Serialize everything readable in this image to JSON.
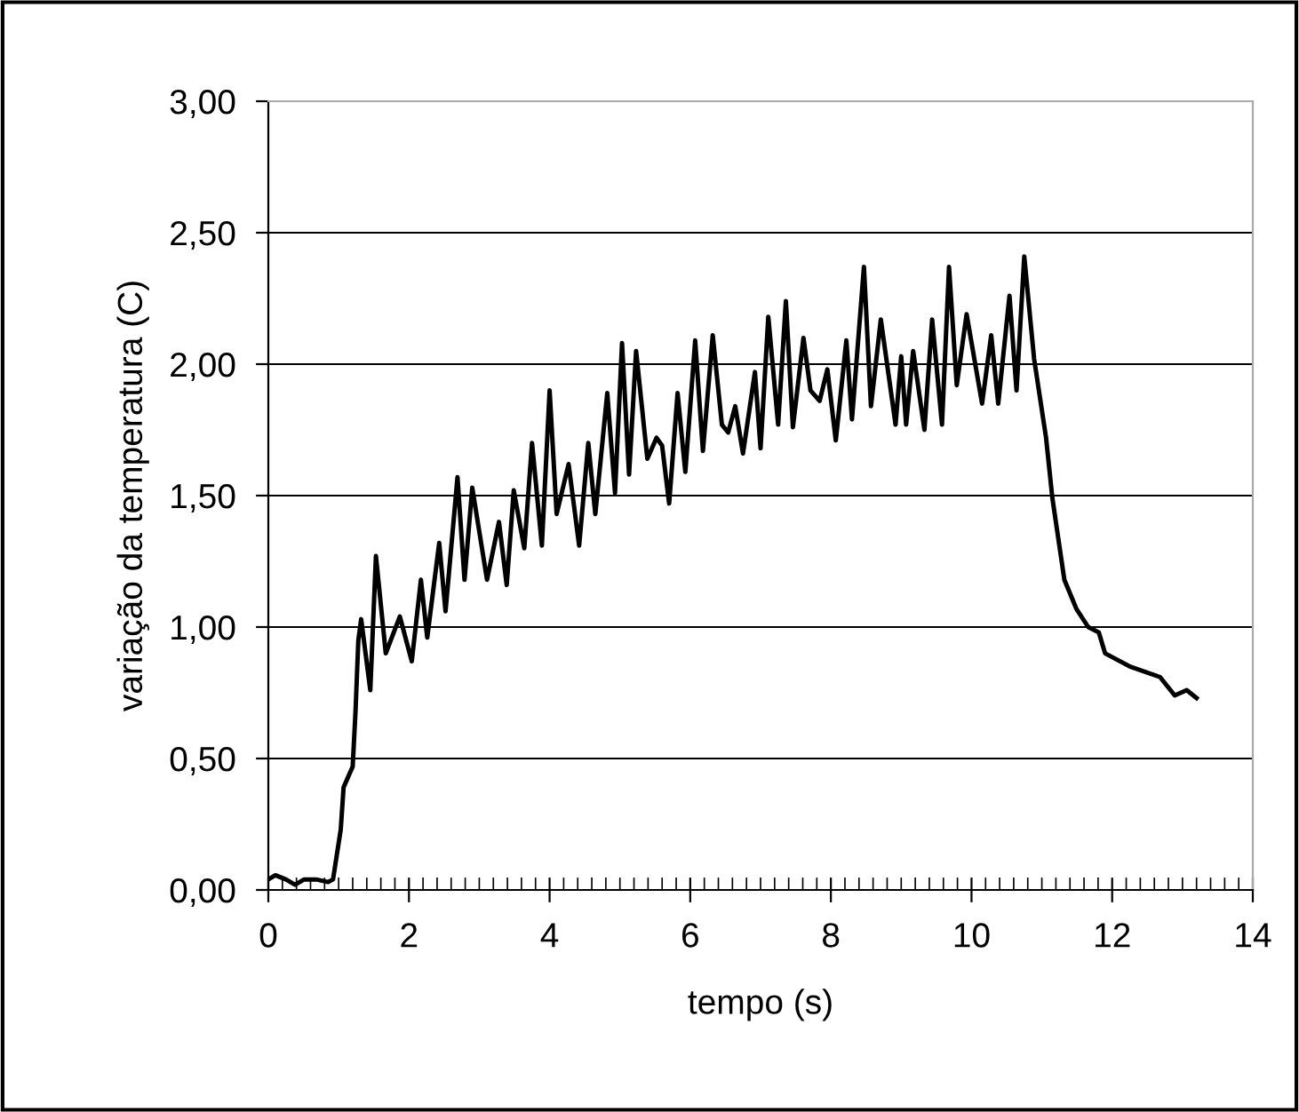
{
  "chart_data": {
    "type": "line",
    "xlabel": "tempo (s)",
    "ylabel": "variação da temperatura (C)",
    "x": [
      0,
      0.1,
      0.25,
      0.38,
      0.51,
      0.68,
      0.85,
      0.92,
      1.03,
      1.07,
      1.2,
      1.24,
      1.28,
      1.32,
      1.45,
      1.53,
      1.67,
      1.87,
      2.04,
      2.17,
      2.26,
      2.43,
      2.52,
      2.69,
      2.79,
      2.9,
      3.11,
      3.28,
      3.39,
      3.49,
      3.64,
      3.75,
      3.89,
      4.0,
      4.1,
      4.27,
      4.42,
      4.55,
      4.65,
      4.82,
      4.93,
      5.03,
      5.13,
      5.23,
      5.39,
      5.52,
      5.6,
      5.7,
      5.82,
      5.93,
      6.07,
      6.18,
      6.32,
      6.45,
      6.54,
      6.64,
      6.75,
      6.92,
      7.0,
      7.11,
      7.25,
      7.36,
      7.46,
      7.61,
      7.71,
      7.84,
      7.95,
      8.07,
      8.22,
      8.3,
      8.47,
      8.57,
      8.71,
      8.92,
      9.0,
      9.07,
      9.17,
      9.33,
      9.44,
      9.58,
      9.68,
      9.79,
      9.93,
      10.15,
      10.28,
      10.38,
      10.54,
      10.64,
      10.75,
      10.89,
      11.06,
      11.15,
      11.32,
      11.49,
      11.66,
      11.81,
      11.9,
      12.25,
      12.68,
      12.89,
      13.06,
      13.2
    ],
    "series": [
      {
        "color": "#000000",
        "values": [
          0.04,
          0.056,
          0.04,
          0.02,
          0.04,
          0.04,
          0.03,
          0.04,
          0.23,
          0.39,
          0.47,
          0.68,
          0.95,
          1.03,
          0.76,
          1.27,
          0.9,
          1.04,
          0.87,
          1.18,
          0.96,
          1.32,
          1.06,
          1.57,
          1.18,
          1.53,
          1.18,
          1.4,
          1.16,
          1.52,
          1.3,
          1.7,
          1.31,
          1.9,
          1.43,
          1.62,
          1.31,
          1.7,
          1.43,
          1.89,
          1.51,
          2.08,
          1.58,
          2.05,
          1.64,
          1.72,
          1.69,
          1.47,
          1.89,
          1.59,
          2.09,
          1.67,
          2.11,
          1.77,
          1.74,
          1.84,
          1.66,
          1.97,
          1.68,
          2.18,
          1.77,
          2.24,
          1.76,
          2.1,
          1.9,
          1.86,
          1.98,
          1.71,
          2.09,
          1.79,
          2.37,
          1.84,
          2.17,
          1.77,
          2.03,
          1.77,
          2.05,
          1.75,
          2.17,
          1.77,
          2.37,
          1.92,
          2.19,
          1.85,
          2.11,
          1.85,
          2.26,
          1.9,
          2.41,
          2.02,
          1.72,
          1.49,
          1.18,
          1.07,
          1.0,
          0.98,
          0.9,
          0.85,
          0.81,
          0.74,
          0.76,
          0.73
        ]
      }
    ],
    "xlim": [
      0,
      14
    ],
    "xticks": [
      0,
      2,
      4,
      6,
      8,
      10,
      12,
      14
    ],
    "ylim": [
      0,
      3
    ],
    "yticks": [
      {
        "value": 0,
        "label": "0,00"
      },
      {
        "value": 0.5,
        "label": "0,50"
      },
      {
        "value": 1,
        "label": "1,00"
      },
      {
        "value": 1.5,
        "label": "1,50"
      },
      {
        "value": 2,
        "label": "2,00"
      },
      {
        "value": 2.5,
        "label": "2,50"
      },
      {
        "value": 3,
        "label": "3,00"
      }
    ],
    "grid": "y",
    "legend": false,
    "marker": "none",
    "line_style": "solid"
  }
}
